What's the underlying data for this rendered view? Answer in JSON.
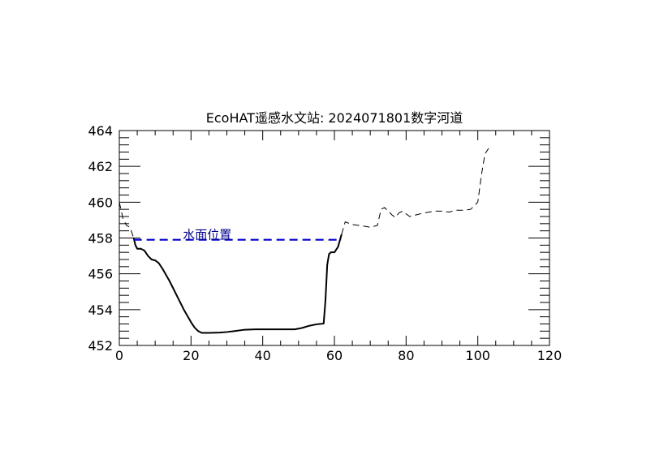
{
  "chart_data": {
    "type": "line",
    "title": "EcoHAT遥感水文站: 2024071801数字河道",
    "xlabel": "",
    "ylabel": "",
    "xlim": [
      0,
      120
    ],
    "ylim": [
      452,
      464
    ],
    "xticks": [
      0,
      20,
      40,
      60,
      80,
      100,
      120
    ],
    "yticks": [
      452,
      454,
      456,
      458,
      460,
      462,
      464
    ],
    "grid": false,
    "annotation": "水面位置",
    "series": [
      {
        "style": "dashed",
        "color": "#000000",
        "points": [
          [
            0,
            460.0
          ],
          [
            1,
            459.1
          ],
          [
            2,
            458.7
          ],
          [
            3,
            458.6
          ],
          [
            4,
            458.0
          ]
        ]
      },
      {
        "style": "solid",
        "color": "#000000",
        "points": [
          [
            4,
            458.0
          ],
          [
            4.5,
            457.6
          ],
          [
            5,
            457.4
          ],
          [
            6,
            457.4
          ],
          [
            7,
            457.3
          ],
          [
            8,
            457.0
          ],
          [
            9,
            456.8
          ],
          [
            10,
            456.75
          ],
          [
            11,
            456.6
          ],
          [
            12,
            456.3
          ],
          [
            14,
            455.6
          ],
          [
            16,
            454.8
          ],
          [
            18,
            454.0
          ],
          [
            20,
            453.3
          ],
          [
            21,
            453.0
          ],
          [
            22,
            452.8
          ],
          [
            23,
            452.7
          ],
          [
            25,
            452.7
          ],
          [
            28,
            452.72
          ],
          [
            30,
            452.75
          ],
          [
            32,
            452.8
          ],
          [
            35,
            452.88
          ],
          [
            38,
            452.9
          ],
          [
            40,
            452.9
          ],
          [
            45,
            452.9
          ],
          [
            49,
            452.9
          ],
          [
            51,
            452.98
          ],
          [
            53,
            453.1
          ],
          [
            55,
            453.18
          ],
          [
            56,
            453.2
          ],
          [
            57,
            453.22
          ],
          [
            57.5,
            454.5
          ],
          [
            58,
            456.5
          ],
          [
            58.5,
            457.1
          ],
          [
            59,
            457.2
          ],
          [
            60,
            457.2
          ],
          [
            61,
            457.5
          ],
          [
            62,
            458.2
          ]
        ]
      },
      {
        "style": "dashed",
        "color": "#000000",
        "points": [
          [
            62,
            458.2
          ],
          [
            63,
            458.9
          ],
          [
            65,
            458.75
          ],
          [
            67,
            458.7
          ],
          [
            70,
            458.6
          ],
          [
            72,
            458.7
          ],
          [
            73,
            459.6
          ],
          [
            74,
            459.7
          ],
          [
            76,
            459.3
          ],
          [
            77,
            459.15
          ],
          [
            78,
            459.4
          ],
          [
            79,
            459.5
          ],
          [
            81,
            459.2
          ],
          [
            83,
            459.3
          ],
          [
            85,
            459.4
          ],
          [
            88,
            459.5
          ],
          [
            90,
            459.5
          ],
          [
            92,
            459.45
          ],
          [
            94,
            459.55
          ],
          [
            96,
            459.55
          ],
          [
            98,
            459.6
          ],
          [
            100,
            460.0
          ],
          [
            101,
            461.5
          ],
          [
            102,
            462.7
          ],
          [
            103,
            463.0
          ]
        ]
      },
      {
        "style": "dashed-thick",
        "color": "#0000cc",
        "points": [
          [
            4,
            457.9
          ],
          [
            62,
            457.9
          ]
        ]
      }
    ]
  }
}
